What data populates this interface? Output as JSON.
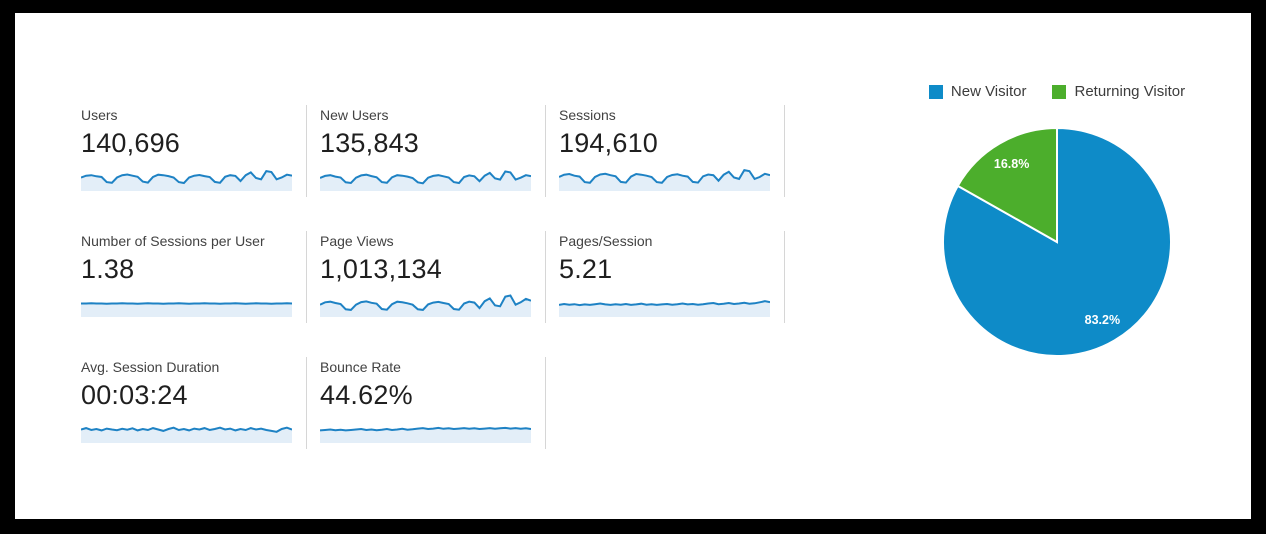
{
  "colors": {
    "frame": "#000000",
    "panel_bg": "#ffffff",
    "spark_line": "#1e82c4",
    "spark_fill": "#e3eef8",
    "divider": "#d6d6d6",
    "metric_label": "#424242",
    "metric_value": "#1f1f1f",
    "pie_blue": "#0e8bc8",
    "pie_green": "#4cae2c"
  },
  "metrics": [
    {
      "label": "Users",
      "value": "140,696",
      "spark": [
        0.5,
        0.58,
        0.6,
        0.55,
        0.52,
        0.3,
        0.27,
        0.5,
        0.6,
        0.63,
        0.58,
        0.53,
        0.32,
        0.28,
        0.52,
        0.62,
        0.6,
        0.56,
        0.5,
        0.3,
        0.26,
        0.5,
        0.58,
        0.61,
        0.56,
        0.52,
        0.31,
        0.27,
        0.53,
        0.6,
        0.57,
        0.35,
        0.6,
        0.72,
        0.48,
        0.42,
        0.78,
        0.74,
        0.42,
        0.5,
        0.62,
        0.58
      ]
    },
    {
      "label": "New Users",
      "value": "135,843",
      "spark": [
        0.48,
        0.57,
        0.6,
        0.54,
        0.5,
        0.29,
        0.26,
        0.49,
        0.59,
        0.62,
        0.56,
        0.51,
        0.3,
        0.27,
        0.51,
        0.6,
        0.58,
        0.54,
        0.48,
        0.29,
        0.25,
        0.49,
        0.57,
        0.6,
        0.55,
        0.5,
        0.3,
        0.26,
        0.52,
        0.59,
        0.55,
        0.34,
        0.58,
        0.7,
        0.46,
        0.41,
        0.76,
        0.72,
        0.41,
        0.49,
        0.6,
        0.56
      ]
    },
    {
      "label": "Sessions",
      "value": "194,610",
      "spark": [
        0.52,
        0.62,
        0.65,
        0.58,
        0.54,
        0.3,
        0.27,
        0.52,
        0.63,
        0.66,
        0.6,
        0.55,
        0.31,
        0.28,
        0.54,
        0.65,
        0.62,
        0.58,
        0.52,
        0.3,
        0.27,
        0.52,
        0.61,
        0.64,
        0.58,
        0.54,
        0.31,
        0.28,
        0.55,
        0.63,
        0.6,
        0.36,
        0.62,
        0.75,
        0.5,
        0.44,
        0.82,
        0.78,
        0.44,
        0.52,
        0.66,
        0.6
      ]
    },
    {
      "label": "Number of Sessions per User",
      "value": "1.38",
      "spark": [
        0.5,
        0.5,
        0.51,
        0.5,
        0.5,
        0.49,
        0.5,
        0.5,
        0.51,
        0.5,
        0.5,
        0.49,
        0.5,
        0.51,
        0.5,
        0.5,
        0.49,
        0.5,
        0.5,
        0.51,
        0.5,
        0.49,
        0.5,
        0.5,
        0.51,
        0.5,
        0.5,
        0.49,
        0.5,
        0.5,
        0.51,
        0.5,
        0.49,
        0.5,
        0.51,
        0.5,
        0.5,
        0.49,
        0.5,
        0.5,
        0.51,
        0.5
      ]
    },
    {
      "label": "Page Views",
      "value": "1,013,134",
      "spark": [
        0.45,
        0.55,
        0.58,
        0.52,
        0.48,
        0.25,
        0.22,
        0.45,
        0.56,
        0.59,
        0.53,
        0.49,
        0.26,
        0.23,
        0.47,
        0.58,
        0.55,
        0.51,
        0.45,
        0.25,
        0.22,
        0.46,
        0.54,
        0.57,
        0.52,
        0.48,
        0.26,
        0.23,
        0.5,
        0.58,
        0.54,
        0.3,
        0.6,
        0.72,
        0.42,
        0.38,
        0.8,
        0.85,
        0.45,
        0.55,
        0.7,
        0.62
      ]
    },
    {
      "label": "Pages/Session",
      "value": "5.21",
      "spark": [
        0.44,
        0.48,
        0.45,
        0.47,
        0.43,
        0.46,
        0.44,
        0.47,
        0.5,
        0.46,
        0.44,
        0.47,
        0.45,
        0.48,
        0.44,
        0.46,
        0.49,
        0.45,
        0.47,
        0.44,
        0.46,
        0.48,
        0.45,
        0.47,
        0.5,
        0.46,
        0.48,
        0.45,
        0.47,
        0.5,
        0.52,
        0.47,
        0.49,
        0.52,
        0.48,
        0.5,
        0.53,
        0.49,
        0.51,
        0.55,
        0.6,
        0.56
      ]
    },
    {
      "label": "Avg. Session Duration",
      "value": "00:03:24",
      "spark": [
        0.5,
        0.56,
        0.48,
        0.52,
        0.46,
        0.54,
        0.5,
        0.47,
        0.53,
        0.49,
        0.55,
        0.46,
        0.52,
        0.48,
        0.56,
        0.5,
        0.44,
        0.52,
        0.58,
        0.48,
        0.52,
        0.46,
        0.54,
        0.5,
        0.56,
        0.48,
        0.52,
        0.58,
        0.5,
        0.54,
        0.46,
        0.52,
        0.48,
        0.56,
        0.5,
        0.54,
        0.48,
        0.44,
        0.4,
        0.52,
        0.58,
        0.5
      ]
    },
    {
      "label": "Bounce Rate",
      "value": "44.62%",
      "spark": [
        0.46,
        0.48,
        0.5,
        0.47,
        0.49,
        0.46,
        0.48,
        0.5,
        0.52,
        0.48,
        0.5,
        0.47,
        0.49,
        0.52,
        0.48,
        0.5,
        0.53,
        0.49,
        0.51,
        0.54,
        0.56,
        0.52,
        0.54,
        0.57,
        0.53,
        0.55,
        0.52,
        0.54,
        0.56,
        0.53,
        0.55,
        0.52,
        0.54,
        0.56,
        0.53,
        0.55,
        0.57,
        0.54,
        0.56,
        0.53,
        0.55,
        0.52
      ]
    }
  ],
  "chart_data": {
    "type": "pie",
    "title": "",
    "labels": [
      "New Visitor",
      "Returning Visitor"
    ],
    "values": [
      83.2,
      16.8
    ],
    "value_labels": [
      "83.2%",
      "16.8%"
    ],
    "colors": [
      "#0e8bc8",
      "#4cae2c"
    ],
    "legend_position": "top",
    "start_angle_deg": 0,
    "direction": "clockwise"
  },
  "legend": [
    {
      "label": "New Visitor",
      "color": "#0e8bc8"
    },
    {
      "label": "Returning Visitor",
      "color": "#4cae2c"
    }
  ]
}
